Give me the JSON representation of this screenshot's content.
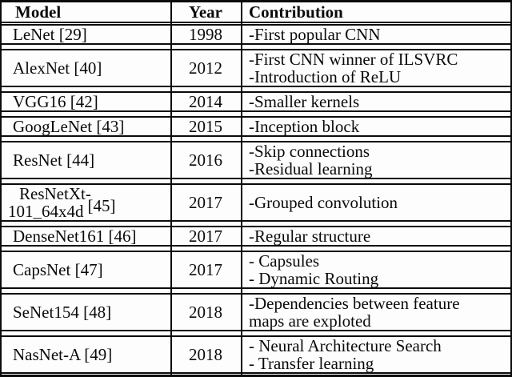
{
  "colors": {
    "border": "#0b0b0b",
    "text": "#0a0a0a",
    "background": "#fdfdfd"
  },
  "table": {
    "columns": [
      "Model",
      "Year",
      "Contribution"
    ],
    "rows": [
      {
        "model": "LeNet [29]",
        "year": "1998",
        "contribution": [
          "-First popular CNN"
        ]
      },
      {
        "model": "AlexNet [40]",
        "year": "2012",
        "contribution": [
          "-First CNN winner of ILSVRC",
          "-Introduction of ReLU"
        ]
      },
      {
        "model": "VGG16 [42]",
        "year": "2014",
        "contribution": [
          "-Smaller kernels"
        ]
      },
      {
        "model": "GoogLeNet [43]",
        "year": "2015",
        "contribution": [
          "-Inception block"
        ]
      },
      {
        "model": "ResNet [44]",
        "year": "2016",
        "contribution": [
          "-Skip connections",
          "-Residual learning"
        ]
      },
      {
        "model_lines": [
          "ResNetXt-",
          "101_64x4d"
        ],
        "model_ref": "[45]",
        "year": "2017",
        "contribution": [
          "-Grouped convolution"
        ]
      },
      {
        "model": "DenseNet161 [46]",
        "year": "2017",
        "contribution": [
          "-Regular structure"
        ]
      },
      {
        "model": "CapsNet [47]",
        "year": "2017",
        "contribution": [
          "- Capsules",
          "- Dynamic Routing"
        ]
      },
      {
        "model": "SeNet154 [48]",
        "year": "2018",
        "contribution": [
          "-Dependencies between feature",
          "maps are exploted"
        ]
      },
      {
        "model": "NasNet-A [49]",
        "year": "2018",
        "contribution": [
          "- Neural Architecture Search",
          "- Transfer learning"
        ]
      }
    ]
  },
  "chart_data": {
    "type": "table",
    "columns": [
      "Model",
      "Year",
      "Contribution"
    ],
    "rows": [
      [
        "LeNet [29]",
        "1998",
        [
          "-First popular CNN"
        ]
      ],
      [
        "AlexNet [40]",
        "2012",
        [
          "-First CNN winner of ILSVRC",
          "-Introduction of ReLU"
        ]
      ],
      [
        "VGG16 [42]",
        "2014",
        [
          "-Smaller kernels"
        ]
      ],
      [
        "GoogLeNet [43]",
        "2015",
        [
          "-Inception block"
        ]
      ],
      [
        "ResNet [44]",
        "2016",
        [
          "-Skip connections",
          "-Residual learning"
        ]
      ],
      [
        "ResNetXt-101_64x4d [45]",
        "2017",
        [
          "-Grouped convolution"
        ]
      ],
      [
        "DenseNet161 [46]",
        "2017",
        [
          "-Regular structure"
        ]
      ],
      [
        "CapsNet [47]",
        "2017",
        [
          "- Capsules",
          "- Dynamic Routing"
        ]
      ],
      [
        "SeNet154 [48]",
        "2018",
        [
          "-Dependencies between feature",
          "maps are exploted"
        ]
      ],
      [
        "NasNet-A [49]",
        "2018",
        [
          "- Neural Architecture Search",
          "- Transfer learning"
        ]
      ]
    ]
  }
}
